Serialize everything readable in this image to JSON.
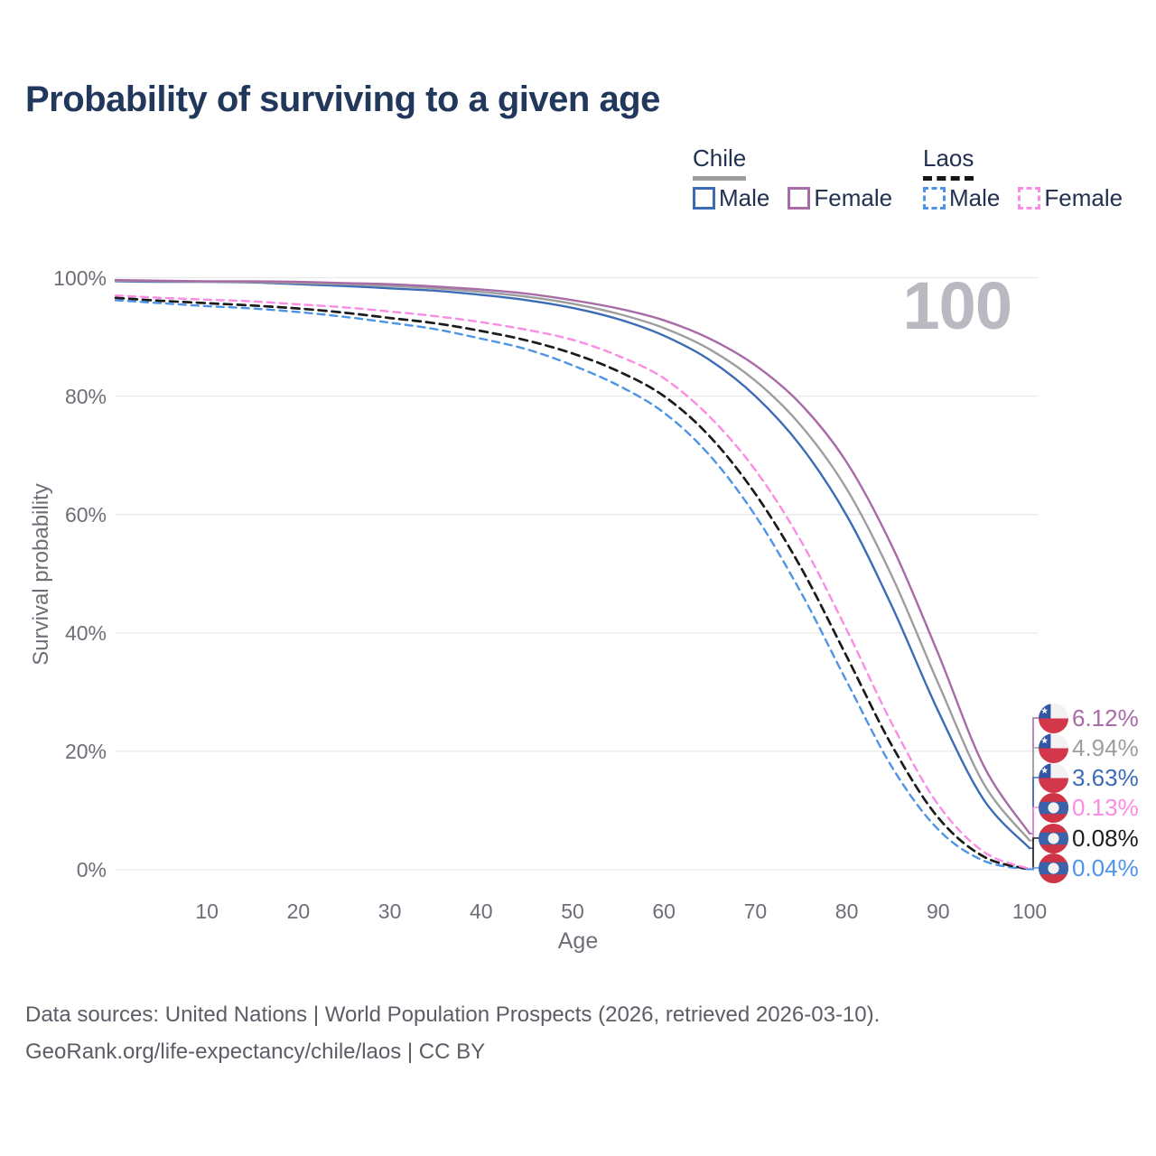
{
  "title": "Probability of surviving to a given age",
  "watermark_age": "100",
  "legend": {
    "groups": [
      {
        "country": "Chile",
        "line_style": "solid",
        "items": [
          {
            "label": "Male",
            "color": "#3b6cb5",
            "dashed": false
          },
          {
            "label": "Female",
            "color": "#a86ba6",
            "dashed": false
          }
        ]
      },
      {
        "country": "Laos",
        "line_style": "dashed",
        "items": [
          {
            "label": "Male",
            "color": "#4e94e6",
            "dashed": true
          },
          {
            "label": "Female",
            "color": "#fb8ce4",
            "dashed": true
          }
        ]
      }
    ]
  },
  "y_axis": {
    "label": "Survival probability",
    "ticks": [
      {
        "label": "100%",
        "value": 100
      },
      {
        "label": "80%",
        "value": 80
      },
      {
        "label": "60%",
        "value": 60
      },
      {
        "label": "40%",
        "value": 40
      },
      {
        "label": "20%",
        "value": 20
      },
      {
        "label": "0%",
        "value": 0
      }
    ]
  },
  "x_axis": {
    "label": "Age",
    "ticks": [
      {
        "label": "10",
        "value": 10
      },
      {
        "label": "20",
        "value": 20
      },
      {
        "label": "30",
        "value": 30
      },
      {
        "label": "40",
        "value": 40
      },
      {
        "label": "50",
        "value": 50
      },
      {
        "label": "60",
        "value": 60
      },
      {
        "label": "70",
        "value": 70
      },
      {
        "label": "80",
        "value": 80
      },
      {
        "label": "90",
        "value": 90
      },
      {
        "label": "100",
        "value": 100
      }
    ]
  },
  "end_labels": [
    {
      "flag": "chile",
      "value": "6.12%",
      "color": "#a86ba6"
    },
    {
      "flag": "chile",
      "value": "4.94%",
      "color": "#9e9e9e"
    },
    {
      "flag": "chile",
      "value": "3.63%",
      "color": "#3b6cb5"
    },
    {
      "flag": "laos",
      "value": "0.13%",
      "color": "#fb8ce4"
    },
    {
      "flag": "laos",
      "value": "0.08%",
      "color": "#1d1d1d"
    },
    {
      "flag": "laos",
      "value": "0.04%",
      "color": "#4e94e6"
    }
  ],
  "footer": {
    "line1": "Data sources: United Nations | World Population Prospects (2026, retrieved 2026-03-10).",
    "line2": "GeoRank.org/life-expectancy/chile/laos | CC BY"
  },
  "colors": {
    "chile_male": "#3b6cb5",
    "chile_female": "#a86ba6",
    "chile_total": "#9e9e9e",
    "laos_male": "#4e94e6",
    "laos_female": "#fb8ce4",
    "laos_total": "#1b1b1b",
    "grid": "#e9e9ee",
    "axis_text": "#6e6e78",
    "watermark": "#b9b9c2",
    "title": "#21375b",
    "footer": "#5c5d66"
  },
  "chart_data": {
    "type": "line",
    "title": "Probability of surviving to a given age",
    "xlabel": "Age",
    "ylabel": "Survival probability",
    "xlim": [
      0,
      100
    ],
    "ylim": [
      0,
      100
    ],
    "grid": "horizontal-only",
    "legend_position": "top-right",
    "x": [
      0,
      5,
      10,
      15,
      20,
      25,
      30,
      35,
      40,
      45,
      50,
      55,
      60,
      65,
      70,
      75,
      80,
      85,
      90,
      95,
      100
    ],
    "series": [
      {
        "name": "Chile Female",
        "country": "Chile",
        "sex": "female",
        "style": "solid",
        "color": "#a86ba6",
        "values": [
          99.6,
          99.5,
          99.4,
          99.4,
          99.3,
          99.1,
          98.9,
          98.5,
          98.0,
          97.3,
          96.2,
          94.8,
          92.8,
          89.7,
          85.2,
          78.6,
          68.8,
          54.5,
          36.5,
          17.5,
          6.12
        ]
      },
      {
        "name": "Chile (both sexes)",
        "country": "Chile",
        "sex": "total",
        "style": "solid",
        "color": "#9e9e9e",
        "values": [
          99.5,
          99.4,
          99.35,
          99.3,
          99.1,
          98.9,
          98.6,
          98.2,
          97.6,
          96.8,
          95.6,
          93.9,
          91.5,
          87.9,
          82.6,
          75.0,
          64.3,
          49.4,
          31.5,
          14.5,
          4.94
        ]
      },
      {
        "name": "Chile Male",
        "country": "Chile",
        "sex": "male",
        "style": "solid",
        "color": "#3b6cb5",
        "values": [
          99.4,
          99.3,
          99.3,
          99.2,
          98.9,
          98.6,
          98.2,
          97.8,
          97.1,
          96.2,
          94.9,
          93.0,
          90.2,
          86.1,
          80.0,
          71.5,
          59.8,
          44.3,
          26.8,
          11.8,
          3.63
        ]
      },
      {
        "name": "Laos Female",
        "country": "Laos",
        "sex": "female",
        "style": "dashed",
        "color": "#fb8ce4",
        "values": [
          97.0,
          96.6,
          96.3,
          96.0,
          95.5,
          95.0,
          94.3,
          93.5,
          92.5,
          91.2,
          89.5,
          86.8,
          83.0,
          76.5,
          67.5,
          55.5,
          40.5,
          24.5,
          11.0,
          3.0,
          0.13
        ]
      },
      {
        "name": "Laos (both sexes)",
        "country": "Laos",
        "sex": "total",
        "style": "dashed",
        "color": "#1b1b1b",
        "values": [
          96.6,
          96.1,
          95.7,
          95.3,
          94.8,
          94.1,
          93.2,
          92.3,
          91.0,
          89.4,
          87.2,
          84.2,
          80.0,
          73.2,
          63.5,
          51.0,
          36.0,
          20.8,
          8.8,
          2.2,
          0.08
        ]
      },
      {
        "name": "Laos Male",
        "country": "Laos",
        "sex": "male",
        "style": "dashed",
        "color": "#4e94e6",
        "values": [
          96.2,
          95.7,
          95.2,
          94.8,
          94.2,
          93.4,
          92.4,
          91.3,
          89.7,
          87.9,
          85.2,
          81.8,
          77.2,
          70.0,
          59.8,
          46.8,
          31.8,
          17.2,
          6.8,
          1.5,
          0.04
        ]
      }
    ],
    "survival_at_age_100": {
      "chile_female": 6.12,
      "chile_total": 4.94,
      "chile_male": 3.63,
      "laos_female": 0.13,
      "laos_total": 0.08,
      "laos_male": 0.04
    }
  }
}
